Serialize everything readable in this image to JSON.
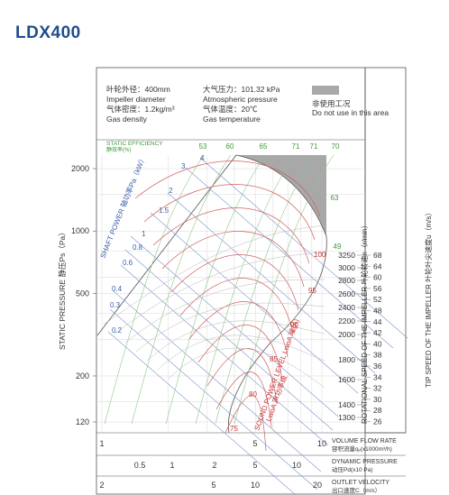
{
  "model": "LDX400",
  "info": {
    "impeller_diameter_cn": "叶轮外径：400mm",
    "impeller_diameter_en": "Impeller diameter",
    "gas_density_cn": "气体密度：1.2kg/m³",
    "gas_density_en": "Gas density",
    "atm_pressure_cn": "大气压力：101.32 kPa",
    "atm_pressure_en": "Atmospheric pressure",
    "gas_temp_cn": "气体温度：20℃",
    "gas_temp_en": "Gas temperature",
    "no_use_cn": "非使用工况",
    "no_use_en": "Do not use in this area"
  },
  "colors": {
    "frame": "#555555",
    "grid": "#c8c8c8",
    "efficiency": "#3a9a3a",
    "power": "#3a5fa8",
    "speed": "#cc3333",
    "gray_area": "#a8a8a8"
  },
  "labels": {
    "static_efficiency": "STATIC EFFICIENCY",
    "static_efficiency_cn": "静效率(%)",
    "shaft_power": "SHAFT POWER 轴功率Pa（kW）",
    "static_pressure": "STATIC PRESSURE 静压Ps（Pa）",
    "sound_power": "SOUND POWER LEVEL LwoA 噪(A)",
    "sound_power_cn": "LwoA 声功率级",
    "rotational_speed": "ROTATIONAL SPEED OF THE IMPELLER  叶轮转速n（r/min）",
    "tip_speed": "TIP SPEED OF THE IMPELLER 叶轮叶尖速度u（m/s）",
    "volume_flow": "VOLUME FLOW RATE",
    "volume_flow_cn": "容积流量qᵥ(x1000m³/h)",
    "dynamic_pressure": "DYNAMIC PRESSURE",
    "dynamic_pressure_cn": "动压Pd(x10 Pa)",
    "outlet_velocity": "OUTLET VELOCITY",
    "outlet_velocity_cn": "出口速度C（m/s）"
  },
  "chart_data": {
    "type": "line",
    "title": "LDX400",
    "y_axis": {
      "label": "STATIC PRESSURE 静压Ps（Pa）",
      "scale": "log",
      "ticks": [
        120,
        200,
        500,
        1000,
        2000
      ]
    },
    "x_axes": [
      {
        "label": "VOLUME FLOW RATE 容积流量qᵥ(x1000m³/h)",
        "scale": "log",
        "ticks": [
          1,
          5,
          10
        ]
      },
      {
        "label": "DYNAMIC PRESSURE 动压Pd(x10 Pa)",
        "scale": "log",
        "ticks": [
          0.5,
          1,
          2,
          5,
          10
        ]
      },
      {
        "label": "OUTLET VELOCITY 出口速度C（m/s）",
        "scale": "log",
        "ticks": [
          2,
          5,
          10,
          20
        ]
      }
    ],
    "shaft_power_kw": [
      "0.2",
      "0.3",
      "0.4",
      "0.6",
      "0.8",
      "1",
      "1.5",
      "2",
      "3",
      "4"
    ],
    "static_efficiency_pct": [
      "53",
      "60",
      "65",
      "71",
      "71",
      "70",
      "63",
      "49"
    ],
    "sound_power_dba": [
      "100",
      "95",
      "90",
      "85",
      "80",
      "75"
    ],
    "rotational_speed_rpm": [
      "3250",
      "3000",
      "2800",
      "2600",
      "2400",
      "2200",
      "2000",
      "1800",
      "1600",
      "1400",
      "1300"
    ],
    "tip_speed_ms": [
      "68",
      "64",
      "60",
      "56",
      "52",
      "48",
      "44",
      "42",
      "40",
      "38",
      "36",
      "34",
      "32",
      "30",
      "28",
      "26"
    ]
  }
}
